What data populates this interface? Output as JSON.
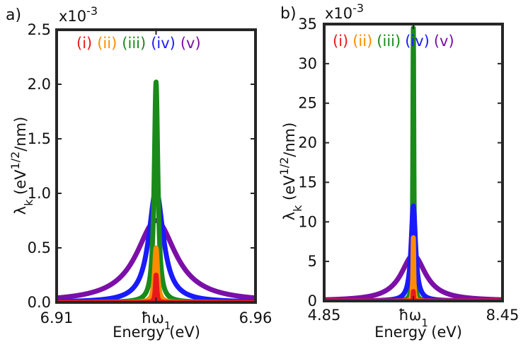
{
  "chart_data": [
    {
      "type": "line",
      "panel_label": "a)",
      "multiplier": "x10",
      "multiplier_exp": "-3",
      "xlabel": "Energy (eV)",
      "ylabel_main": "λ",
      "ylabel_sub": "k",
      "ylabel_unit_pre": " (eV",
      "ylabel_unit_sup": "1/2",
      "ylabel_unit_post": "/nm)",
      "xlim": [
        6.91,
        6.96
      ],
      "ylim": [
        0,
        2.5
      ],
      "xticks": [
        {
          "value": 6.91,
          "label": "6.91"
        },
        {
          "value": 6.935,
          "label": "ħω",
          "sub": "1"
        },
        {
          "value": 6.96,
          "label": "6.96"
        }
      ],
      "yticks": [
        {
          "value": 0.0,
          "label": "0.0"
        },
        {
          "value": 0.5,
          "label": "0.5"
        },
        {
          "value": 1.0,
          "label": "1.0"
        },
        {
          "value": 1.5,
          "label": "1.5"
        },
        {
          "value": 2.0,
          "label": "2.0"
        },
        {
          "value": 2.5,
          "label": "2.5"
        }
      ],
      "center": 6.935,
      "series": [
        {
          "name": "(i)",
          "color": "#e8191a",
          "peak": 0.25,
          "hwhm": 0.00022
        },
        {
          "name": "(ii)",
          "color": "#ff8c00",
          "peak": 0.5,
          "hwhm": 0.00045
        },
        {
          "name": "(iii)",
          "color": "#1a8a1a",
          "peak": 2.02,
          "hwhm": 0.00055
        },
        {
          "name": "(iv)",
          "color": "#1a1aff",
          "peak": 1.03,
          "hwhm": 0.0022
        },
        {
          "name": "(v)",
          "color": "#7b0fa8",
          "peak": 0.75,
          "hwhm": 0.006
        }
      ],
      "draw_order": [
        4,
        3,
        2,
        1,
        0
      ]
    },
    {
      "type": "line",
      "panel_label": "b)",
      "multiplier": "x10",
      "multiplier_exp": "-3",
      "xlabel": "Energy (eV)",
      "ylabel_main": "λ",
      "ylabel_sub": "k",
      "ylabel_unit_pre": " (eV",
      "ylabel_unit_sup": "1/2",
      "ylabel_unit_post": "/nm)",
      "xlim": [
        4.85,
        8.45
      ],
      "ylim": [
        0,
        35
      ],
      "xticks": [
        {
          "value": 4.85,
          "label": "4.85"
        },
        {
          "value": 6.65,
          "label": "ħω",
          "sub": "1"
        },
        {
          "value": 8.45,
          "label": "8.45"
        }
      ],
      "yticks": [
        {
          "value": 0,
          "label": "0"
        },
        {
          "value": 5,
          "label": "5"
        },
        {
          "value": 10,
          "label": "10"
        },
        {
          "value": 15,
          "label": "15"
        },
        {
          "value": 20,
          "label": "20"
        },
        {
          "value": 25,
          "label": "25"
        },
        {
          "value": 30,
          "label": "30"
        },
        {
          "value": 35,
          "label": "35"
        }
      ],
      "center": 6.65,
      "series": [
        {
          "name": "(i)",
          "color": "#e8191a",
          "peak": 1.2,
          "hwhm": 0.004
        },
        {
          "name": "(ii)",
          "color": "#ff8c00",
          "peak": 8.0,
          "hwhm": 0.01
        },
        {
          "name": "(iii)",
          "color": "#1a8a1a",
          "peak": 34.5,
          "hwhm": 0.012
        },
        {
          "name": "(iv)",
          "color": "#1a1aff",
          "peak": 12.0,
          "hwhm": 0.055
        },
        {
          "name": "(v)",
          "color": "#7b0fa8",
          "peak": 5.8,
          "hwhm": 0.3
        }
      ],
      "draw_order": [
        4,
        2,
        3,
        1,
        0
      ]
    }
  ]
}
